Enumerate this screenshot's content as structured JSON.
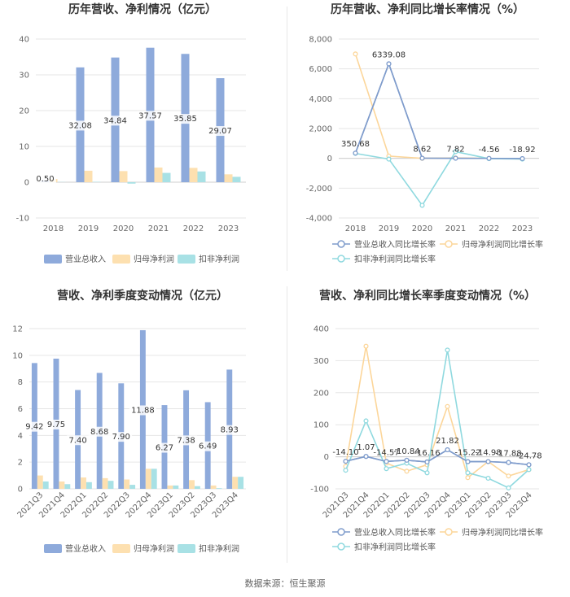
{
  "colors": {
    "revenue": "#8eaadb",
    "net_profit": "#fde0b0",
    "deducted_profit": "#a8e1e5",
    "grid": "#e6e6e6",
    "axis_text": "#666666"
  },
  "source_text": "数据来源：恒生聚源",
  "chart_data": [
    {
      "id": "annual_values",
      "type": "bar",
      "title": "历年营收、净利情况（亿元）",
      "categories": [
        "2018",
        "2019",
        "2020",
        "2021",
        "2022",
        "2023"
      ],
      "ylim": [
        -10,
        40
      ],
      "yticks": [
        -10,
        0,
        10,
        20,
        30,
        40
      ],
      "grid": true,
      "legend_position": "bottom",
      "series": [
        {
          "name": "营业总收入",
          "values": [
            0.5,
            32.08,
            34.84,
            37.57,
            35.85,
            29.07
          ],
          "labels": [
            "0.50",
            "32.08",
            "34.84",
            "37.57",
            "35.85",
            "29.07"
          ]
        },
        {
          "name": "归母净利润",
          "values": [
            0.9,
            3.2,
            3.1,
            4.1,
            4.0,
            2.2
          ]
        },
        {
          "name": "扣非净利润",
          "values": [
            0.05,
            0.1,
            -0.4,
            2.6,
            3.0,
            1.5
          ]
        }
      ]
    },
    {
      "id": "annual_growth",
      "type": "line",
      "title": "历年营收、净利同比增长率情况（%）",
      "categories": [
        "2018",
        "2019",
        "2020",
        "2021",
        "2022",
        "2023"
      ],
      "ylim": [
        -4000,
        8000
      ],
      "yticks": [
        -4000,
        -2000,
        0,
        2000,
        4000,
        6000,
        8000
      ],
      "ytick_labels": [
        "-4,000",
        "-2,000",
        "0",
        "2,000",
        "4,000",
        "6,000",
        "8,000"
      ],
      "grid": true,
      "legend_position": "bottom",
      "series": [
        {
          "name": "营业总收入同比增长率",
          "values": [
            350.68,
            6339.08,
            8.62,
            7.82,
            -4.56,
            -18.92
          ],
          "labels": [
            "350.68",
            "6339.08",
            "8.62",
            "7.82",
            "-4.56",
            "-18.92"
          ]
        },
        {
          "name": "归母净利润同比增长率",
          "values": [
            7000,
            150,
            0,
            30,
            -5,
            -40
          ]
        },
        {
          "name": "扣非净利润同比增长率",
          "values": [
            330,
            -50,
            -3150,
            450,
            -20,
            -50
          ]
        }
      ]
    },
    {
      "id": "quarterly_values",
      "type": "bar",
      "title": "营收、净利季度变动情况（亿元）",
      "categories": [
        "2021Q3",
        "2021Q4",
        "2022Q1",
        "2022Q2",
        "2022Q3",
        "2022Q4",
        "2023Q1",
        "2023Q2",
        "2023Q3",
        "2023Q4"
      ],
      "ylim": [
        0,
        12
      ],
      "yticks": [
        0,
        2,
        4,
        6,
        8,
        10,
        12
      ],
      "grid": true,
      "legend_position": "bottom",
      "series": [
        {
          "name": "营业总收入",
          "values": [
            9.42,
            9.75,
            7.4,
            8.68,
            7.9,
            11.88,
            6.27,
            7.38,
            6.49,
            8.93
          ],
          "labels": [
            "9.42",
            "9.75",
            "7.40",
            "8.68",
            "7.90",
            "11.88",
            "6.27",
            "7.38",
            "6.49",
            "8.93"
          ]
        },
        {
          "name": "归母净利润",
          "values": [
            1.0,
            0.55,
            0.85,
            0.8,
            0.7,
            1.5,
            0.25,
            0.65,
            0.25,
            0.9
          ]
        },
        {
          "name": "扣非净利润",
          "values": [
            0.55,
            0.35,
            0.5,
            0.6,
            0.3,
            1.5,
            0.25,
            0.2,
            0.05,
            0.9
          ]
        }
      ]
    },
    {
      "id": "quarterly_growth",
      "type": "line",
      "title": "营收、净利同比增长率季度变动情况（%）",
      "categories": [
        "2021Q3",
        "2021Q4",
        "2022Q1",
        "2022Q2",
        "2022Q3",
        "2022Q4",
        "2023Q1",
        "2023Q2",
        "2023Q3",
        "2023Q4"
      ],
      "ylim": [
        -100,
        400
      ],
      "yticks": [
        -100,
        0,
        100,
        200,
        300,
        400
      ],
      "grid": true,
      "legend_position": "bottom",
      "series": [
        {
          "name": "营业总收入同比增长率",
          "values": [
            -14.1,
            1.07,
            -14.57,
            -10.84,
            -16.16,
            21.82,
            -15.22,
            -14.98,
            -17.88,
            -24.78
          ],
          "labels": [
            "-14.10",
            "1.07",
            "-14.57",
            "-10.84",
            "-16.16",
            "21.82",
            "-15.22",
            "-14.98",
            "-17.88",
            "-24.78"
          ]
        },
        {
          "name": "归母净利润同比增长率",
          "values": [
            -30,
            345,
            -20,
            -45,
            -25,
            157,
            -65,
            -15,
            -60,
            -40
          ]
        },
        {
          "name": "扣非净利润同比增长率",
          "values": [
            -42,
            112,
            -37,
            -20,
            -50,
            333,
            -50,
            -67,
            -97,
            -40
          ]
        }
      ]
    }
  ]
}
